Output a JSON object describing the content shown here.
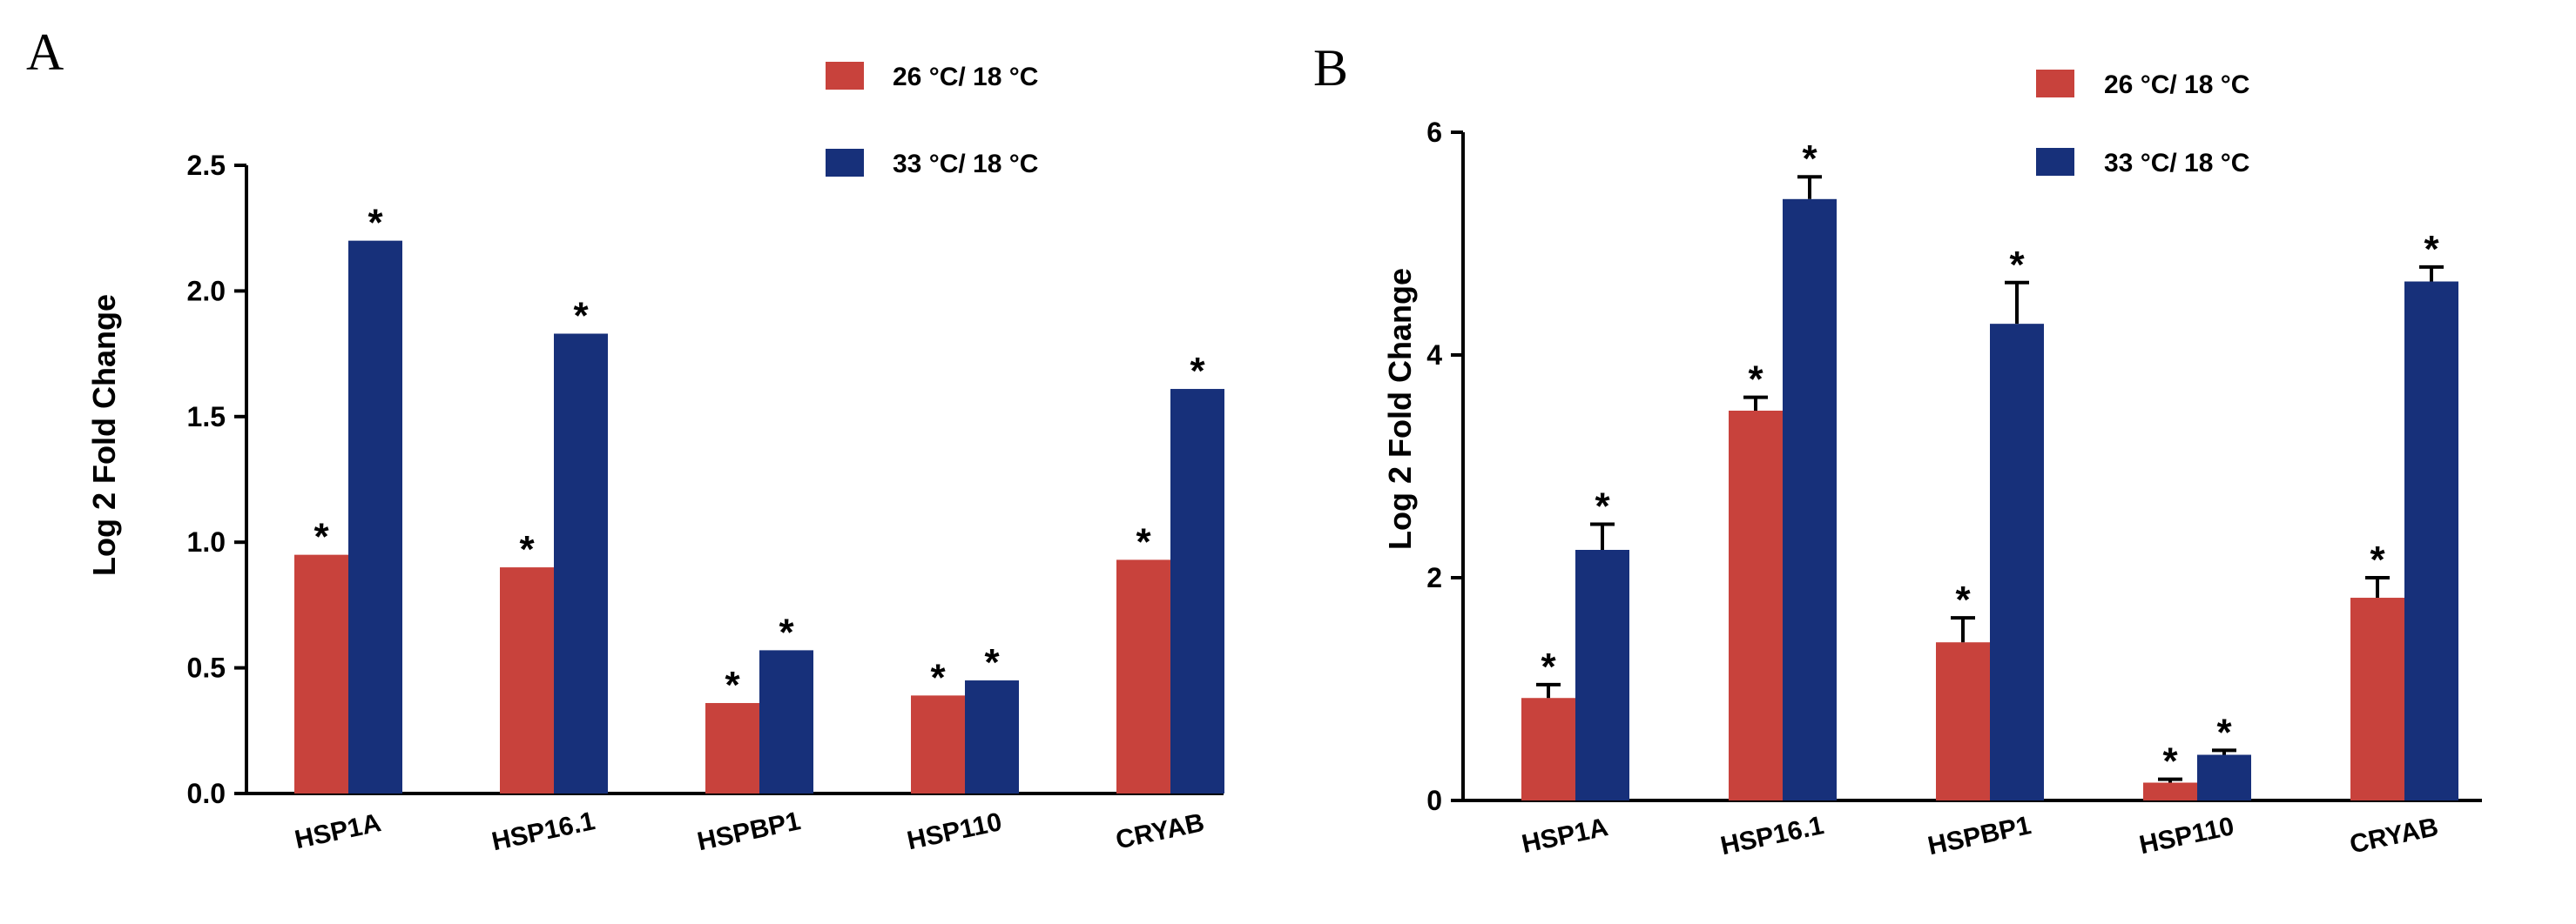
{
  "chart_data": [
    {
      "type": "bar",
      "panel": "A",
      "title": "",
      "xlabel": "",
      "ylabel": "Log 2 Fold Change",
      "ylim": [
        0,
        2.5
      ],
      "yticks": [
        0.0,
        0.5,
        1.0,
        1.5,
        2.0,
        2.5
      ],
      "ytick_labels": [
        "0.0",
        "0.5",
        "1.0",
        "1.5",
        "2.0",
        "2.5"
      ],
      "categories": [
        "HSP1A",
        "HSP16.1",
        "HSPBP1",
        "HSP110",
        "CRYAB"
      ],
      "series": [
        {
          "name": "26 °C/ 18 °C",
          "color": "#c8423c",
          "values": [
            0.95,
            0.9,
            0.36,
            0.39,
            0.93
          ],
          "errors": [],
          "annotations": [
            "*",
            "*",
            "*",
            "*",
            "*"
          ]
        },
        {
          "name": "33 °C/ 18 °C",
          "color": "#17307a",
          "values": [
            2.2,
            1.83,
            0.57,
            0.45,
            1.61
          ],
          "errors": [],
          "annotations": [
            "*",
            "*",
            "*",
            "*",
            "*"
          ]
        }
      ],
      "legend_position": "top-right"
    },
    {
      "type": "bar",
      "panel": "B",
      "title": "",
      "xlabel": "",
      "ylabel": "Log 2 Fold Change",
      "ylim": [
        0,
        6
      ],
      "yticks": [
        0,
        2,
        4,
        6
      ],
      "ytick_labels": [
        "0",
        "2",
        "4",
        "6"
      ],
      "categories": [
        "HSP1A",
        "HSP16.1",
        "HSPBP1",
        "HSP110",
        "CRYAB"
      ],
      "series": [
        {
          "name": "26 °C/ 18 °C",
          "color": "#c8423c",
          "values": [
            0.92,
            3.5,
            1.42,
            0.16,
            1.82
          ],
          "errors": [
            0.12,
            0.12,
            0.22,
            0.03,
            0.18
          ],
          "annotations": [
            "*",
            "*",
            "*",
            "*",
            "*"
          ]
        },
        {
          "name": "33 °C/ 18 °C",
          "color": "#17307a",
          "values": [
            2.25,
            5.4,
            4.28,
            0.41,
            4.66
          ],
          "errors": [
            0.23,
            0.2,
            0.37,
            0.04,
            0.13
          ],
          "annotations": [
            "*",
            "*",
            "*",
            "*",
            "*"
          ]
        }
      ],
      "legend_position": "top-right"
    }
  ]
}
